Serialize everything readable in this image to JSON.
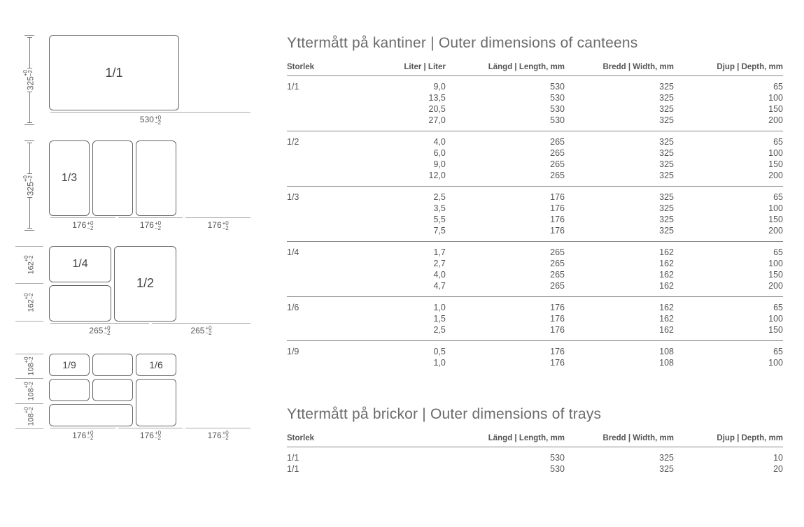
{
  "colors": {
    "text": "#4a4a4a",
    "rule": "#888888",
    "box": "#666666",
    "bg": "#ffffff"
  },
  "headings": {
    "canteens": "Yttermått på kantiner | Outer dimensions of canteens",
    "trays": "Yttermått på brickor | Outer dimensions of trays"
  },
  "columns": {
    "size": "Storlek",
    "liter": "Liter | Liter",
    "length": "Längd | Length, mm",
    "width": "Bredd | Width, mm",
    "depth": "Djup | Depth, mm"
  },
  "diagrams": {
    "tol": "+0\n−2",
    "d1": {
      "label": "1/1",
      "h": "325",
      "w": "530"
    },
    "d2": {
      "label": "1/3",
      "h": "325",
      "cells": [
        "176",
        "176",
        "176"
      ]
    },
    "d3": {
      "top": "1/4",
      "right": "1/2",
      "vh": [
        "162",
        "162"
      ],
      "cells": [
        "265",
        "265"
      ]
    },
    "d4": {
      "a": "1/9",
      "b": "1/6",
      "vh": [
        "108",
        "108",
        "108"
      ],
      "cells": [
        "176",
        "176",
        "176"
      ]
    }
  },
  "canteens": [
    {
      "size": "1/1",
      "rows": [
        {
          "liter": "9,0",
          "len": "530",
          "wid": "325",
          "dep": "65"
        },
        {
          "liter": "13,5",
          "len": "530",
          "wid": "325",
          "dep": "100"
        },
        {
          "liter": "20,5",
          "len": "530",
          "wid": "325",
          "dep": "150"
        },
        {
          "liter": "27,0",
          "len": "530",
          "wid": "325",
          "dep": "200"
        }
      ]
    },
    {
      "size": "1/2",
      "rows": [
        {
          "liter": "4,0",
          "len": "265",
          "wid": "325",
          "dep": "65"
        },
        {
          "liter": "6,0",
          "len": "265",
          "wid": "325",
          "dep": "100"
        },
        {
          "liter": "9,0",
          "len": "265",
          "wid": "325",
          "dep": "150"
        },
        {
          "liter": "12,0",
          "len": "265",
          "wid": "325",
          "dep": "200"
        }
      ]
    },
    {
      "size": "1/3",
      "rows": [
        {
          "liter": "2,5",
          "len": "176",
          "wid": "325",
          "dep": "65"
        },
        {
          "liter": "3,5",
          "len": "176",
          "wid": "325",
          "dep": "100"
        },
        {
          "liter": "5,5",
          "len": "176",
          "wid": "325",
          "dep": "150"
        },
        {
          "liter": "7,5",
          "len": "176",
          "wid": "325",
          "dep": "200"
        }
      ]
    },
    {
      "size": "1/4",
      "rows": [
        {
          "liter": "1,7",
          "len": "265",
          "wid": "162",
          "dep": "65"
        },
        {
          "liter": "2,7",
          "len": "265",
          "wid": "162",
          "dep": "100"
        },
        {
          "liter": "4,0",
          "len": "265",
          "wid": "162",
          "dep": "150"
        },
        {
          "liter": "4,7",
          "len": "265",
          "wid": "162",
          "dep": "200"
        }
      ]
    },
    {
      "size": "1/6",
      "rows": [
        {
          "liter": "1,0",
          "len": "176",
          "wid": "162",
          "dep": "65"
        },
        {
          "liter": "1,5",
          "len": "176",
          "wid": "162",
          "dep": "100"
        },
        {
          "liter": "2,5",
          "len": "176",
          "wid": "162",
          "dep": "150"
        }
      ]
    },
    {
      "size": "1/9",
      "rows": [
        {
          "liter": "0,5",
          "len": "176",
          "wid": "108",
          "dep": "65"
        },
        {
          "liter": "1,0",
          "len": "176",
          "wid": "108",
          "dep": "100"
        }
      ]
    }
  ],
  "trays": [
    {
      "size": "1/1",
      "rows": [
        {
          "len": "530",
          "wid": "325",
          "dep": "10"
        },
        {
          "len": "530",
          "wid": "325",
          "dep": "20"
        }
      ]
    }
  ]
}
